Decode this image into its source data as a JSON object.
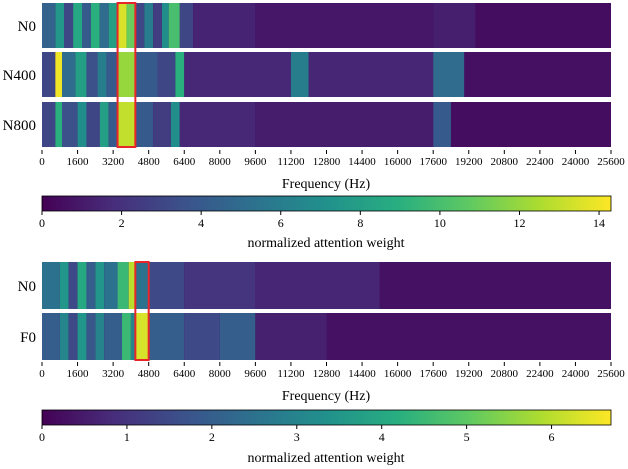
{
  "chart_data": [
    {
      "type": "heatmap",
      "rows": [
        "N0",
        "N400",
        "N800"
      ],
      "x": {
        "label": "Frequency (Hz)",
        "range": [
          0,
          25600
        ],
        "ticks": [
          "0",
          "1600",
          "3200",
          "4800",
          "6400",
          "8000",
          "9600",
          "11200",
          "12800",
          "14400",
          "16000",
          "17600",
          "19200",
          "20800",
          "22400",
          "24000",
          "25600"
        ]
      },
      "colorbar": {
        "label": "normalized attention weight",
        "range": [
          0,
          14.3
        ],
        "ticks": [
          "0",
          "2",
          "4",
          "6",
          "8",
          "10",
          "12",
          "14"
        ]
      },
      "highlight": {
        "x_from": 3400,
        "x_to": 4200,
        "color": "#e8262a"
      },
      "bands": [
        {
          "row": "N0",
          "from": 0,
          "to": 600,
          "value": 4.5
        },
        {
          "row": "N0",
          "from": 600,
          "to": 1000,
          "value": 7.5
        },
        {
          "row": "N0",
          "from": 1000,
          "to": 1400,
          "value": 3
        },
        {
          "row": "N0",
          "from": 1400,
          "to": 1800,
          "value": 8.5
        },
        {
          "row": "N0",
          "from": 1800,
          "to": 2200,
          "value": 4
        },
        {
          "row": "N0",
          "from": 2200,
          "to": 2600,
          "value": 9
        },
        {
          "row": "N0",
          "from": 2600,
          "to": 3000,
          "value": 5
        },
        {
          "row": "N0",
          "from": 3000,
          "to": 3400,
          "value": 8
        },
        {
          "row": "N0",
          "from": 3400,
          "to": 3800,
          "value": 13.5
        },
        {
          "row": "N0",
          "from": 3800,
          "to": 4200,
          "value": 11
        },
        {
          "row": "N0",
          "from": 4200,
          "to": 4600,
          "value": 3
        },
        {
          "row": "N0",
          "from": 4600,
          "to": 5000,
          "value": 6
        },
        {
          "row": "N0",
          "from": 5000,
          "to": 5400,
          "value": 2.5
        },
        {
          "row": "N0",
          "from": 5400,
          "to": 5700,
          "value": 7
        },
        {
          "row": "N0",
          "from": 5700,
          "to": 6200,
          "value": 10
        },
        {
          "row": "N0",
          "from": 6200,
          "to": 6800,
          "value": 3
        },
        {
          "row": "N0",
          "from": 6800,
          "to": 9600,
          "value": 1.4
        },
        {
          "row": "N0",
          "from": 9600,
          "to": 17600,
          "value": 0.9
        },
        {
          "row": "N0",
          "from": 17600,
          "to": 19500,
          "value": 1.2
        },
        {
          "row": "N0",
          "from": 19500,
          "to": 25600,
          "value": 0.5
        },
        {
          "row": "N400",
          "from": 0,
          "to": 600,
          "value": 3
        },
        {
          "row": "N400",
          "from": 600,
          "to": 900,
          "value": 14
        },
        {
          "row": "N400",
          "from": 900,
          "to": 1500,
          "value": 5
        },
        {
          "row": "N400",
          "from": 1500,
          "to": 2000,
          "value": 8
        },
        {
          "row": "N400",
          "from": 2000,
          "to": 2500,
          "value": 3.5
        },
        {
          "row": "N400",
          "from": 2500,
          "to": 2900,
          "value": 6
        },
        {
          "row": "N400",
          "from": 2900,
          "to": 3400,
          "value": 4
        },
        {
          "row": "N400",
          "from": 3400,
          "to": 4200,
          "value": 12
        },
        {
          "row": "N400",
          "from": 4200,
          "to": 5200,
          "value": 4
        },
        {
          "row": "N400",
          "from": 5200,
          "to": 6000,
          "value": 3
        },
        {
          "row": "N400",
          "from": 6000,
          "to": 6400,
          "value": 9
        },
        {
          "row": "N400",
          "from": 6400,
          "to": 11200,
          "value": 1.6
        },
        {
          "row": "N400",
          "from": 11200,
          "to": 12000,
          "value": 6
        },
        {
          "row": "N400",
          "from": 12000,
          "to": 17600,
          "value": 1.5
        },
        {
          "row": "N400",
          "from": 17600,
          "to": 19000,
          "value": 5
        },
        {
          "row": "N400",
          "from": 19000,
          "to": 25600,
          "value": 0.6
        },
        {
          "row": "N800",
          "from": 0,
          "to": 600,
          "value": 3
        },
        {
          "row": "N800",
          "from": 600,
          "to": 900,
          "value": 9
        },
        {
          "row": "N800",
          "from": 900,
          "to": 1600,
          "value": 3.5
        },
        {
          "row": "N800",
          "from": 1600,
          "to": 2000,
          "value": 7
        },
        {
          "row": "N800",
          "from": 2000,
          "to": 2600,
          "value": 3
        },
        {
          "row": "N800",
          "from": 2600,
          "to": 3000,
          "value": 8
        },
        {
          "row": "N800",
          "from": 3000,
          "to": 3400,
          "value": 4
        },
        {
          "row": "N800",
          "from": 3400,
          "to": 4200,
          "value": 13
        },
        {
          "row": "N800",
          "from": 4200,
          "to": 5000,
          "value": 4
        },
        {
          "row": "N800",
          "from": 5000,
          "to": 5800,
          "value": 2.5
        },
        {
          "row": "N800",
          "from": 5800,
          "to": 6200,
          "value": 7
        },
        {
          "row": "N800",
          "from": 6200,
          "to": 9600,
          "value": 1.6
        },
        {
          "row": "N800",
          "from": 9600,
          "to": 17600,
          "value": 1.1
        },
        {
          "row": "N800",
          "from": 17600,
          "to": 18400,
          "value": 4
        },
        {
          "row": "N800",
          "from": 18400,
          "to": 25600,
          "value": 0.5
        }
      ]
    },
    {
      "type": "heatmap",
      "rows": [
        "N0",
        "F0"
      ],
      "x": {
        "label": "Frequency (Hz)",
        "range": [
          0,
          25600
        ],
        "ticks": [
          "0",
          "1600",
          "3200",
          "4800",
          "6400",
          "8000",
          "9600",
          "11200",
          "12800",
          "14400",
          "16000",
          "17600",
          "19200",
          "20800",
          "22400",
          "24000",
          "25600"
        ]
      },
      "colorbar": {
        "label": "normalized attention weight",
        "range": [
          0,
          6.7
        ],
        "ticks": [
          "0",
          "1",
          "2",
          "3",
          "4",
          "5",
          "6"
        ]
      },
      "highlight": {
        "x_from": 4200,
        "x_to": 4800,
        "color": "#e8262a"
      },
      "bands": [
        {
          "row": "N0",
          "from": 0,
          "to": 800,
          "value": 2.5
        },
        {
          "row": "N0",
          "from": 800,
          "to": 1200,
          "value": 3.5
        },
        {
          "row": "N0",
          "from": 1200,
          "to": 1600,
          "value": 1.5
        },
        {
          "row": "N0",
          "from": 1600,
          "to": 2000,
          "value": 4
        },
        {
          "row": "N0",
          "from": 2000,
          "to": 2400,
          "value": 2
        },
        {
          "row": "N0",
          "from": 2400,
          "to": 2800,
          "value": 3.5
        },
        {
          "row": "N0",
          "from": 2800,
          "to": 3400,
          "value": 2.5
        },
        {
          "row": "N0",
          "from": 3400,
          "to": 3900,
          "value": 4.5
        },
        {
          "row": "N0",
          "from": 3900,
          "to": 4200,
          "value": 6
        },
        {
          "row": "N0",
          "from": 4200,
          "to": 4800,
          "value": 2.5
        },
        {
          "row": "N0",
          "from": 4800,
          "to": 6400,
          "value": 1.5
        },
        {
          "row": "N0",
          "from": 6400,
          "to": 9600,
          "value": 1
        },
        {
          "row": "N0",
          "from": 9600,
          "to": 15200,
          "value": 0.7
        },
        {
          "row": "N0",
          "from": 15200,
          "to": 25600,
          "value": 0.3
        },
        {
          "row": "F0",
          "from": 0,
          "to": 800,
          "value": 2
        },
        {
          "row": "F0",
          "from": 800,
          "to": 1200,
          "value": 3
        },
        {
          "row": "F0",
          "from": 1200,
          "to": 1600,
          "value": 1.5
        },
        {
          "row": "F0",
          "from": 1600,
          "to": 2000,
          "value": 3.5
        },
        {
          "row": "F0",
          "from": 2000,
          "to": 2400,
          "value": 1.8
        },
        {
          "row": "F0",
          "from": 2400,
          "to": 2800,
          "value": 3
        },
        {
          "row": "F0",
          "from": 2800,
          "to": 3600,
          "value": 2
        },
        {
          "row": "F0",
          "from": 3600,
          "to": 4000,
          "value": 4.5
        },
        {
          "row": "F0",
          "from": 4000,
          "to": 4200,
          "value": 3
        },
        {
          "row": "F0",
          "from": 4200,
          "to": 4800,
          "value": 6.3
        },
        {
          "row": "F0",
          "from": 4800,
          "to": 6400,
          "value": 2
        },
        {
          "row": "F0",
          "from": 6400,
          "to": 8000,
          "value": 1.5
        },
        {
          "row": "F0",
          "from": 8000,
          "to": 9600,
          "value": 2
        },
        {
          "row": "F0",
          "from": 9600,
          "to": 12800,
          "value": 0.6
        },
        {
          "row": "F0",
          "from": 12800,
          "to": 25600,
          "value": 0.3
        }
      ]
    }
  ]
}
